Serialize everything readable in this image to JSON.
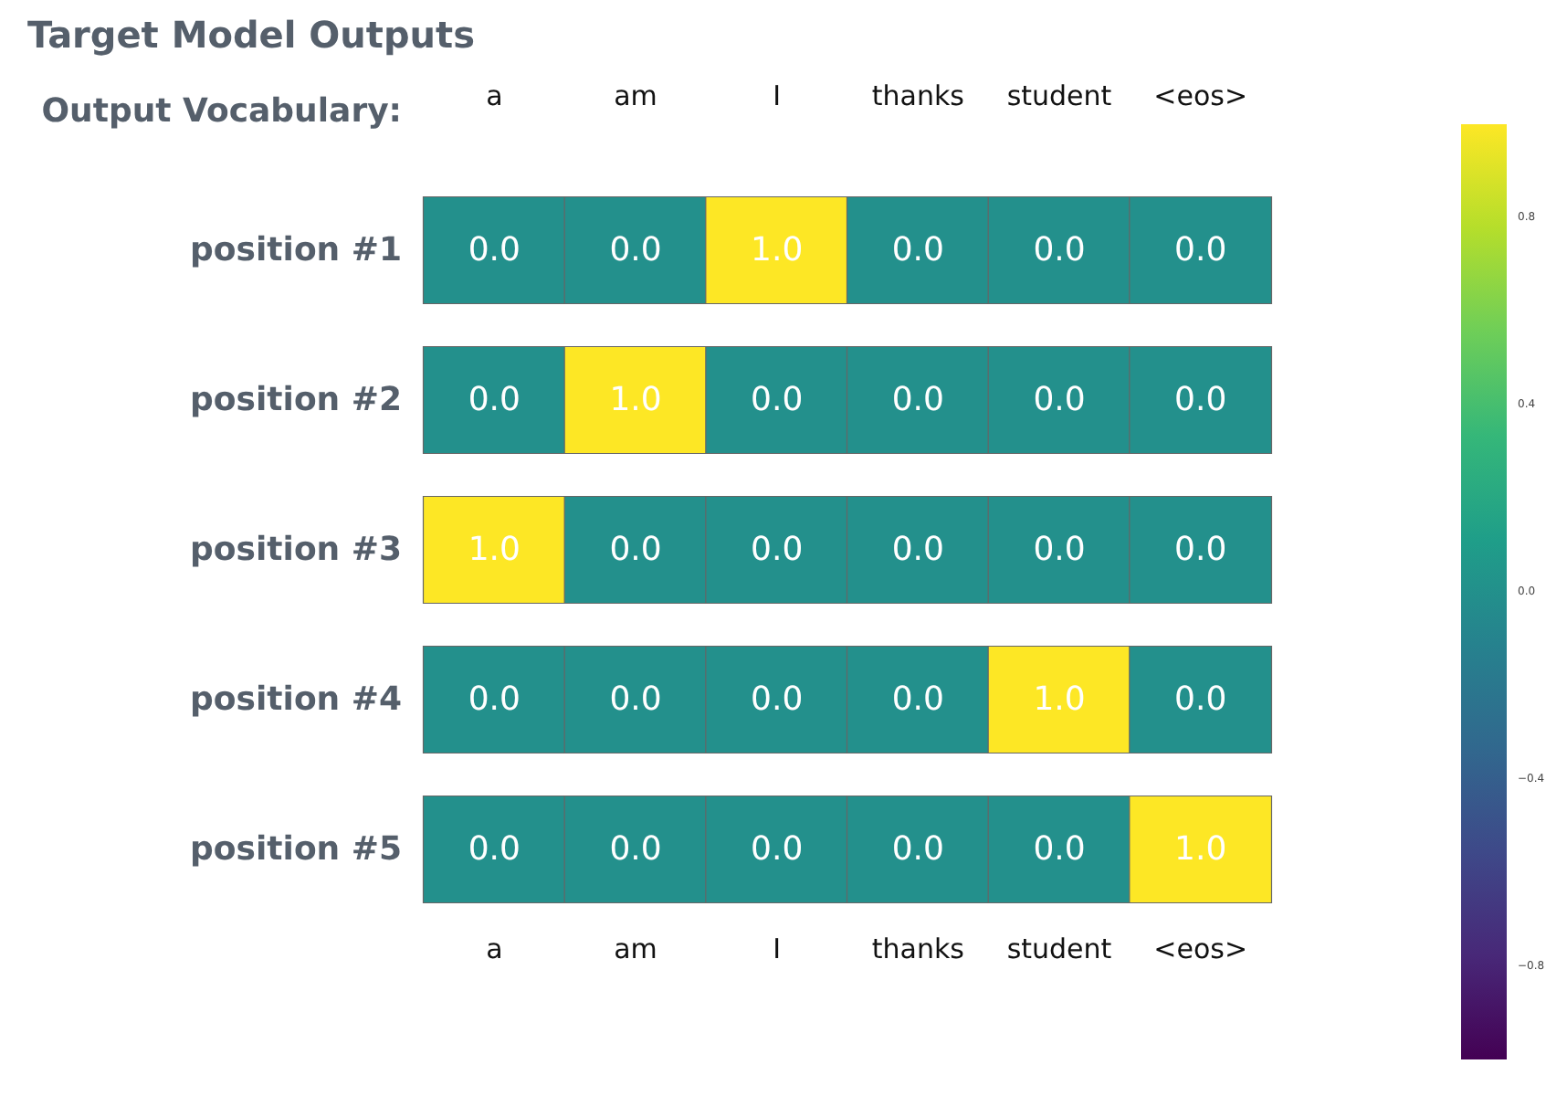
{
  "chart_data": {
    "type": "heatmap",
    "title": "Target Model Outputs",
    "xlabel": "Output Vocabulary:",
    "categories": [
      "a",
      "am",
      "I",
      "thanks",
      "student",
      "<eos>"
    ],
    "y_categories": [
      "position #1",
      "position #2",
      "position #3",
      "position #4",
      "position #5"
    ],
    "cells": [
      [
        0,
        0,
        1,
        0,
        0,
        0
      ],
      [
        0,
        1,
        0,
        0,
        0,
        0
      ],
      [
        1,
        0,
        0,
        0,
        0,
        0
      ],
      [
        0,
        0,
        0,
        0,
        1,
        0
      ],
      [
        0,
        0,
        0,
        0,
        0,
        1
      ]
    ],
    "cell_labels": [
      [
        "0.0",
        "0.0",
        "1.0",
        "0.0",
        "0.0",
        "0.0"
      ],
      [
        "0.0",
        "1.0",
        "0.0",
        "0.0",
        "0.0",
        "0.0"
      ],
      [
        "1.0",
        "0.0",
        "0.0",
        "0.0",
        "0.0",
        "0.0"
      ],
      [
        "0.0",
        "0.0",
        "0.0",
        "0.0",
        "1.0",
        "0.0"
      ],
      [
        "0.0",
        "0.0",
        "0.0",
        "0.0",
        "0.0",
        "1.0"
      ]
    ],
    "clim": [
      -1,
      1
    ],
    "cticks": [
      {
        "value": -0.8,
        "label": "−0.8"
      },
      {
        "value": -0.4,
        "label": "−0.4"
      },
      {
        "value": 0,
        "label": "0.0"
      },
      {
        "value": 0.4,
        "label": "0.4"
      },
      {
        "value": 0.8,
        "label": "0.8"
      }
    ]
  }
}
